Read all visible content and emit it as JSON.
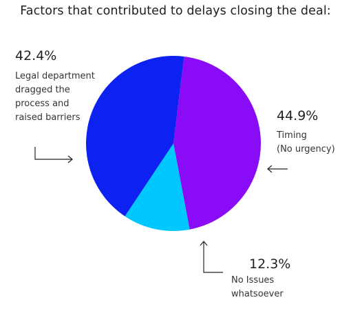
{
  "chart_data": {
    "type": "pie",
    "title": "Factors that contributed to delays closing the deal:",
    "slices": [
      {
        "value": 44.9,
        "label_pct": "44.9%",
        "desc_lines": [
          "Timing",
          "(No urgency)"
        ],
        "color": "#8A0BF5"
      },
      {
        "value": 12.3,
        "label_pct": "12.3%",
        "desc_lines": [
          "No Issues",
          "whatsoever"
        ],
        "color": "#00C8FF"
      },
      {
        "value": 42.4,
        "label_pct": "42.4%",
        "desc_lines": [
          "Legal department",
          "dragged the",
          "process and",
          "raised barriers"
        ],
        "color": "#0D22F0"
      }
    ]
  }
}
